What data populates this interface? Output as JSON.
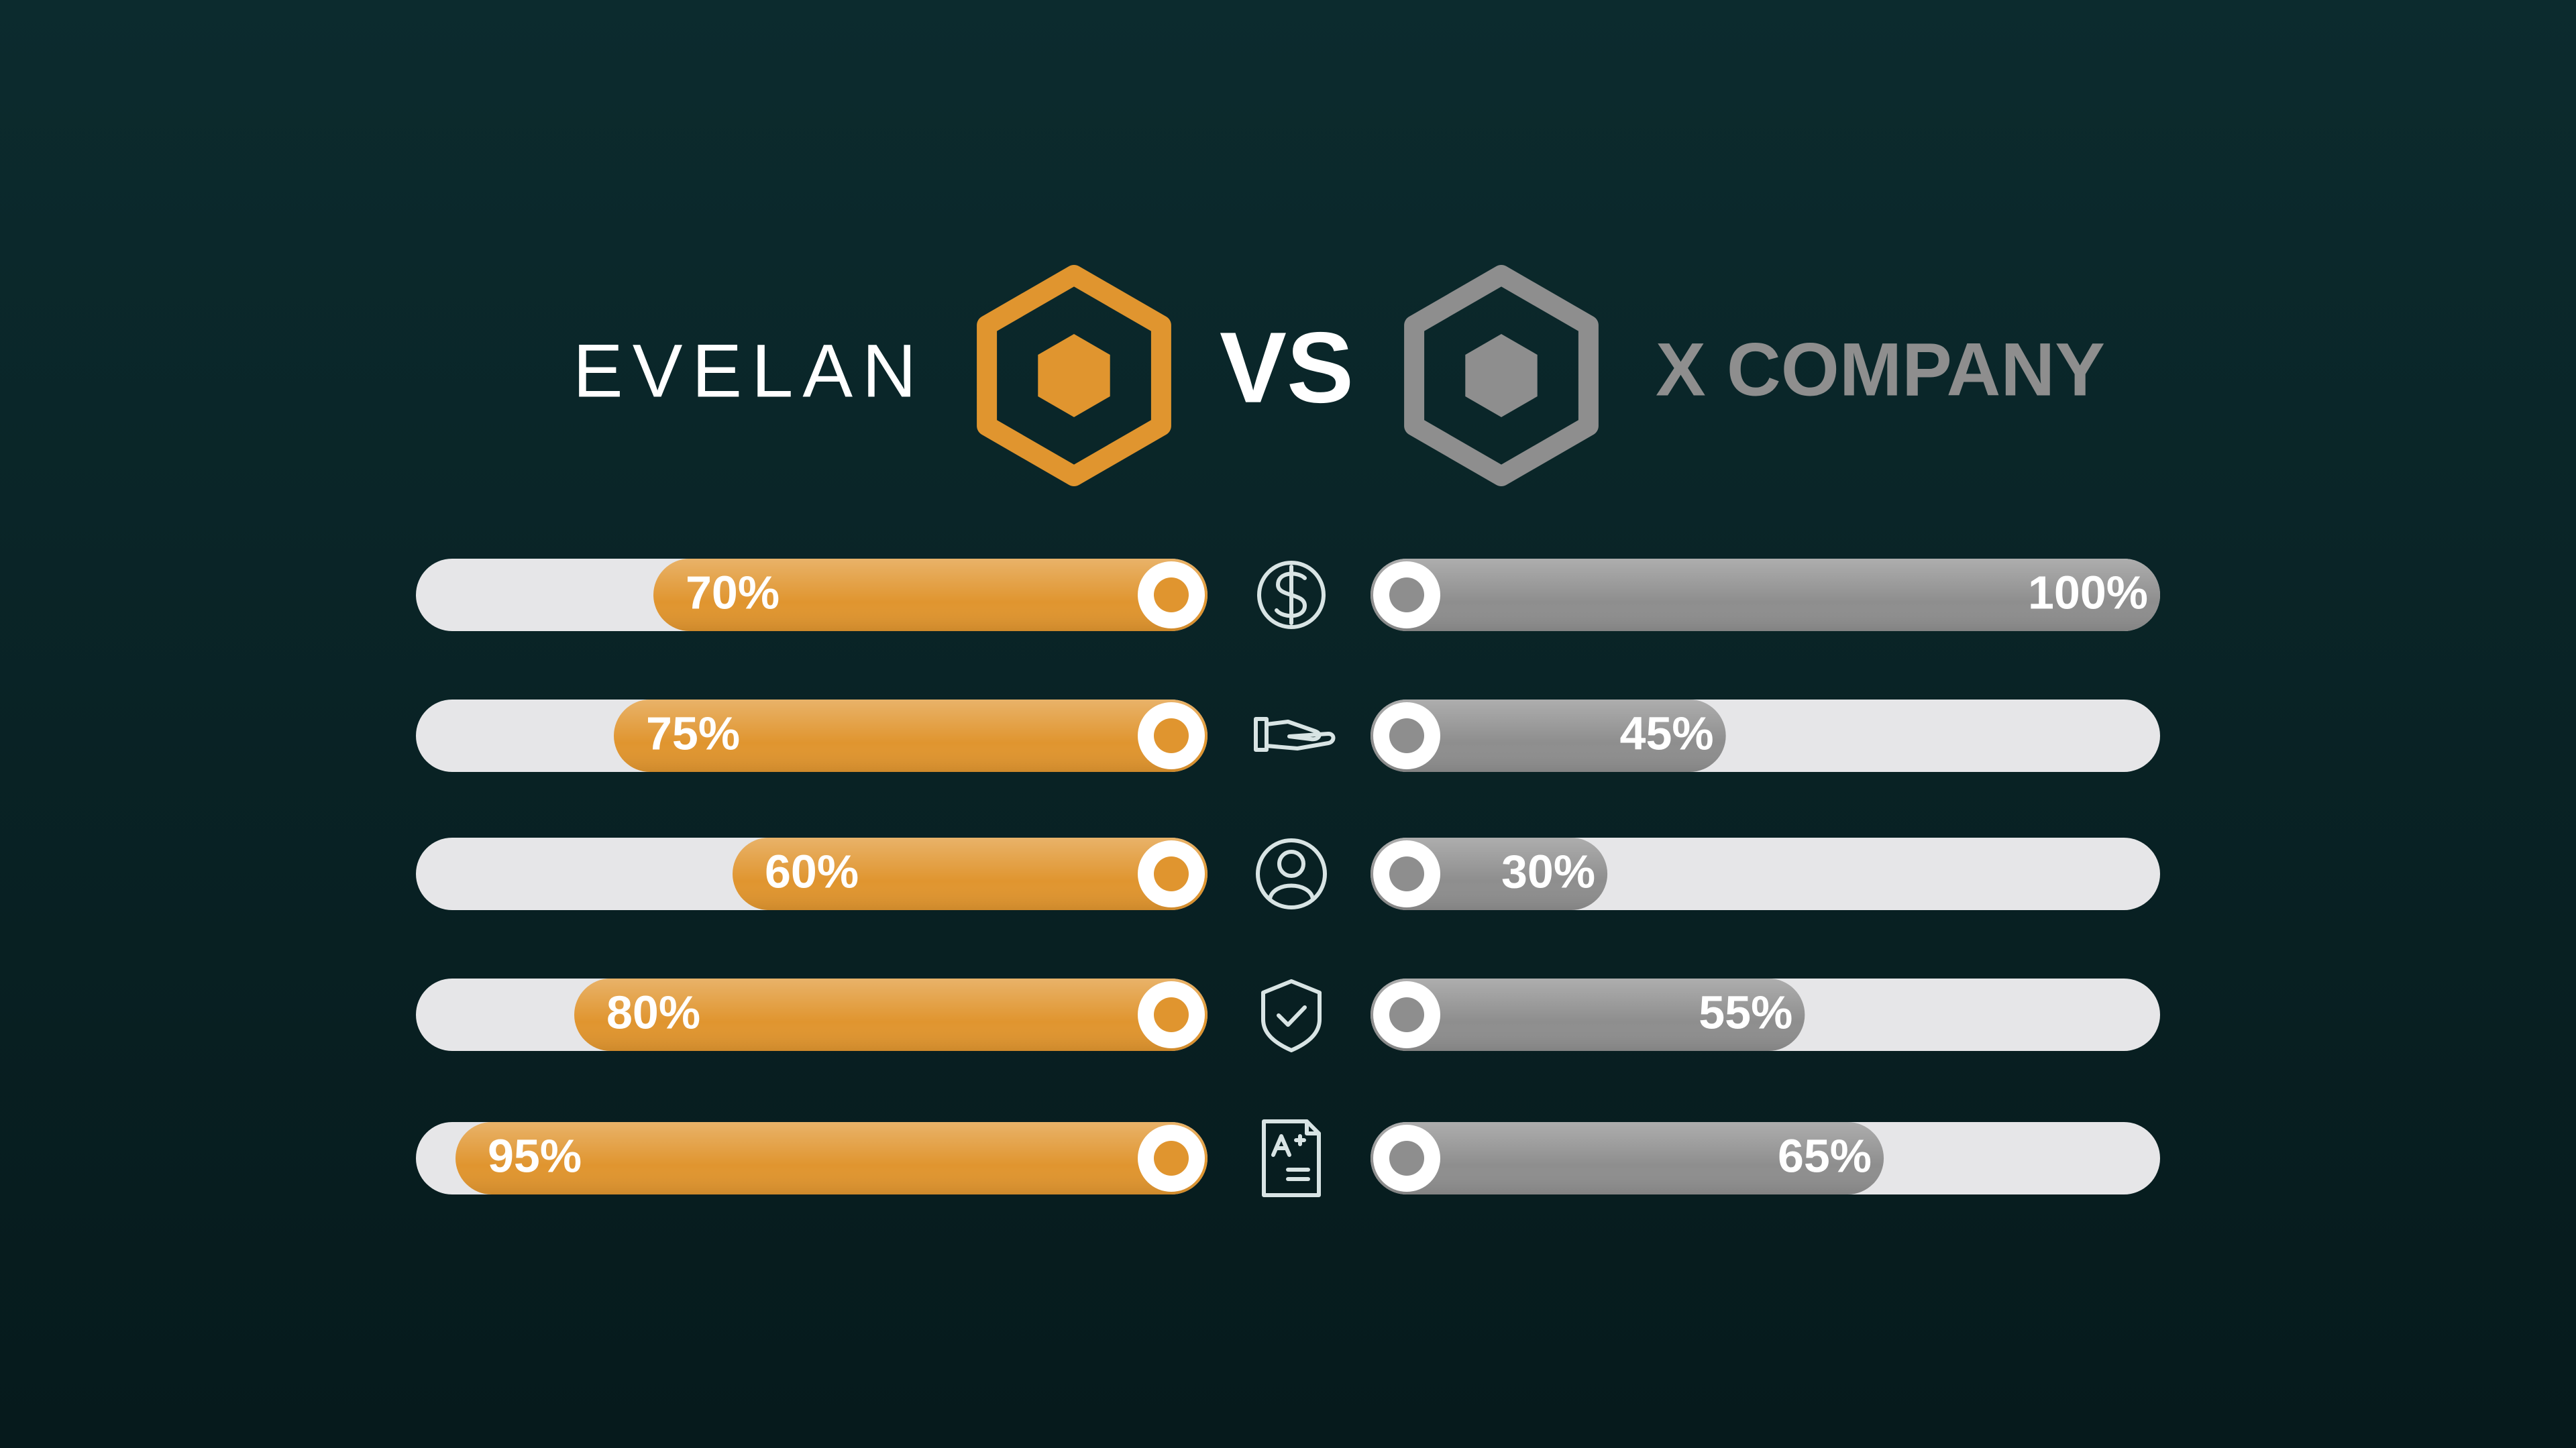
{
  "chart_data": {
    "type": "bar",
    "annotations": [
      "VS"
    ],
    "xlim": [
      0,
      100
    ],
    "series": [
      {
        "name": "EVELAN",
        "color": "#e0952f",
        "values": [
          70,
          75,
          60,
          80,
          95
        ],
        "value_labels": [
          "70%",
          "75%",
          "60%",
          "80%",
          "95%"
        ]
      },
      {
        "name": "X COMPANY",
        "color": "#8e8e8e",
        "values": [
          100,
          45,
          30,
          55,
          65
        ],
        "value_labels": [
          "100%",
          "45%",
          "30%",
          "55%",
          "65%"
        ]
      }
    ]
  }
}
